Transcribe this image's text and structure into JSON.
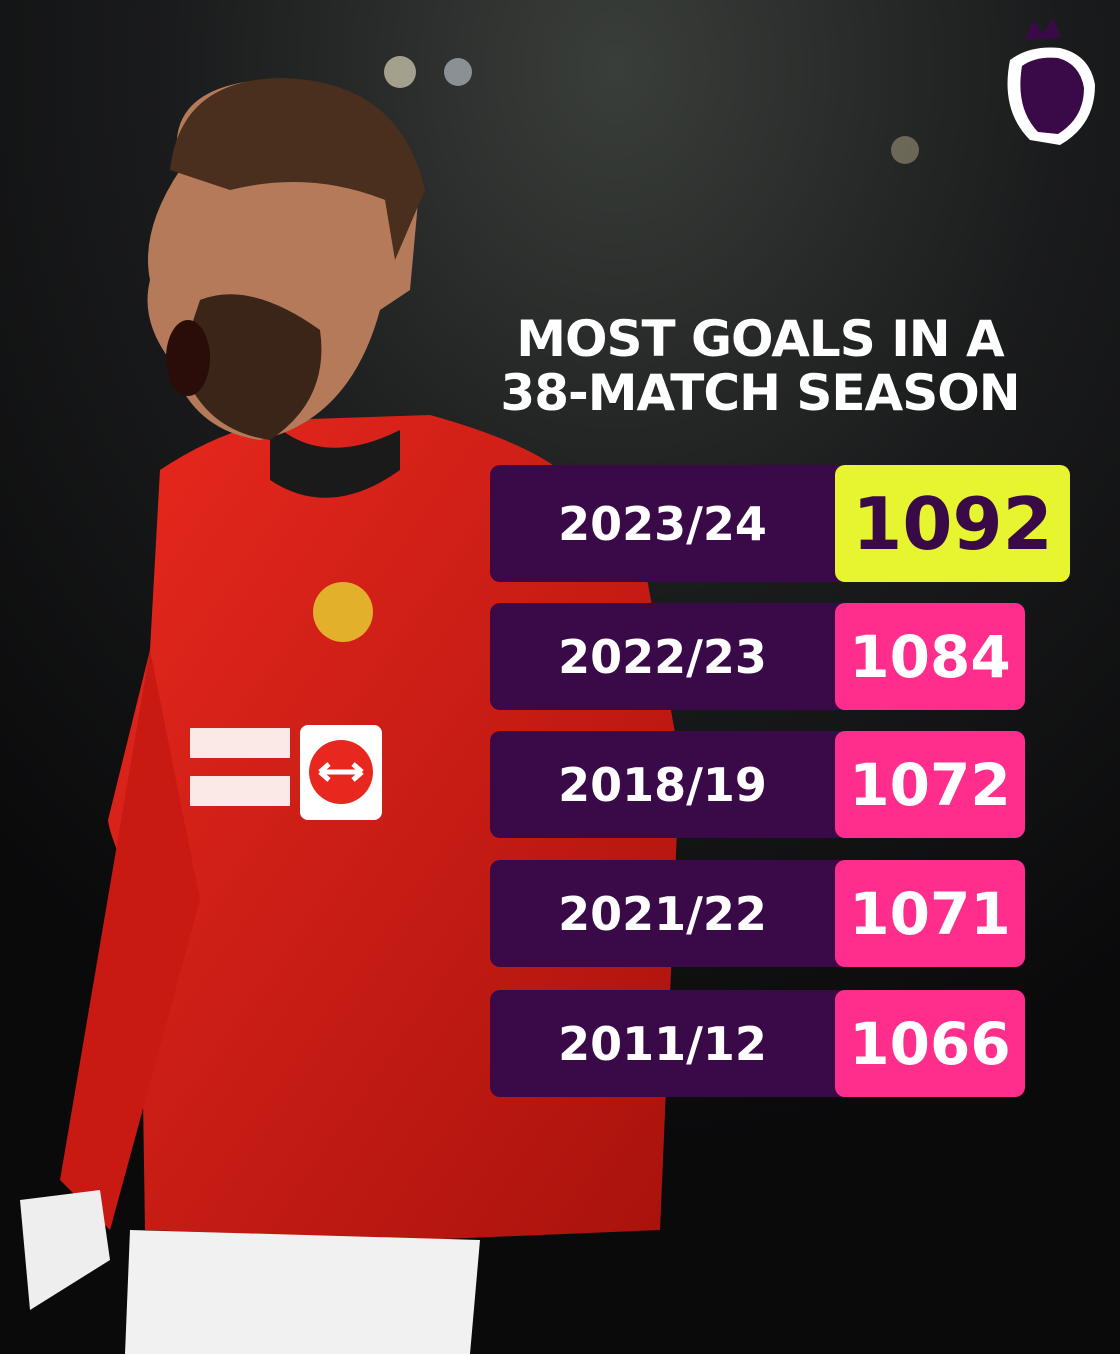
{
  "header": {
    "title_lines": [
      "MOST GOALS IN A",
      "38-MATCH SEASON"
    ]
  },
  "table": {
    "rows": [
      {
        "season": "2023/24",
        "goals": 1092
      },
      {
        "season": "2022/23",
        "goals": 1084
      },
      {
        "season": "2018/19",
        "goals": 1072
      },
      {
        "season": "2021/22",
        "goals": 1071
      },
      {
        "season": "2011/12",
        "goals": 1066
      }
    ]
  }
}
